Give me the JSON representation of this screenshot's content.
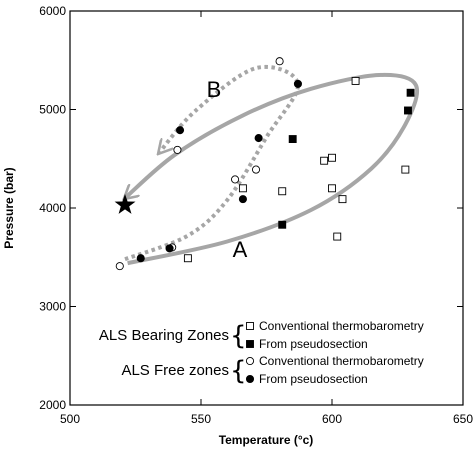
{
  "chart_data": {
    "type": "scatter",
    "xlabel": "Temperature (°c)",
    "ylabel": "Pressure (bar)",
    "xlim": [
      500,
      650
    ],
    "ylim": [
      2000,
      6000
    ],
    "x_ticks": [
      500,
      550,
      600,
      650
    ],
    "y_ticks": [
      2000,
      3000,
      4000,
      5000,
      6000
    ],
    "grid": false,
    "series": [
      {
        "name": "Conventional thermobarometry",
        "group": "ALS Bearing Zones",
        "marker": "open-square",
        "points": [
          [
            545,
            3490
          ],
          [
            566,
            4200
          ],
          [
            581,
            4170
          ],
          [
            597,
            4480
          ],
          [
            600,
            4510
          ],
          [
            609,
            5290
          ],
          [
            600,
            4200
          ],
          [
            604,
            4090
          ],
          [
            628,
            4390
          ],
          [
            602,
            3710
          ]
        ]
      },
      {
        "name": "From pseudosection",
        "group": "ALS Bearing Zones",
        "marker": "filled-square",
        "points": [
          [
            585,
            4700
          ],
          [
            630,
            5170
          ],
          [
            629,
            4990
          ],
          [
            581,
            3830
          ]
        ]
      },
      {
        "name": "Conventional thermobarometry",
        "group": "ALS Free zones",
        "marker": "open-circle",
        "points": [
          [
            519,
            3410
          ],
          [
            539,
            3600
          ],
          [
            541,
            4590
          ],
          [
            563,
            4290
          ],
          [
            571,
            4390
          ],
          [
            580,
            5490
          ]
        ]
      },
      {
        "name": "From pseudosection",
        "group": "ALS Free zones",
        "marker": "filled-circle",
        "points": [
          [
            527,
            3490
          ],
          [
            538,
            3590
          ],
          [
            542,
            4790
          ],
          [
            566,
            4090
          ],
          [
            572,
            4710
          ],
          [
            587,
            5260
          ]
        ]
      }
    ],
    "paths": [
      {
        "label": "A",
        "style": "solid",
        "color": "#a6a6a6",
        "points": [
          [
            522,
            3440
          ],
          [
            560,
            3660
          ],
          [
            592,
            3980
          ],
          [
            615,
            4400
          ],
          [
            628,
            4850
          ],
          [
            632,
            5250
          ],
          [
            618,
            5350
          ],
          [
            592,
            5210
          ],
          [
            566,
            4940
          ],
          [
            540,
            4540
          ],
          [
            521,
            4100
          ]
        ]
      },
      {
        "label": "B",
        "style": "dotted",
        "color": "#a6a6a6",
        "points": [
          [
            521,
            3480
          ],
          [
            545,
            3720
          ],
          [
            560,
            4080
          ],
          [
            575,
            4720
          ],
          [
            587,
            5260
          ],
          [
            571,
            5420
          ],
          [
            548,
            4990
          ],
          [
            534,
            4560
          ]
        ]
      }
    ],
    "star_point": [
      521,
      4030
    ],
    "legend": {
      "placement": "bottom-right",
      "groups": [
        {
          "label": "ALS Bearing Zones",
          "entries": [
            {
              "marker": "open-square",
              "label": "Conventional thermobarometry"
            },
            {
              "marker": "filled-square",
              "label": "From pseudosection"
            }
          ]
        },
        {
          "label": "ALS Free zones",
          "entries": [
            {
              "marker": "open-circle",
              "label": "Conventional thermobarometry"
            },
            {
              "marker": "filled-circle",
              "label": "From pseudosection"
            }
          ]
        }
      ]
    }
  }
}
